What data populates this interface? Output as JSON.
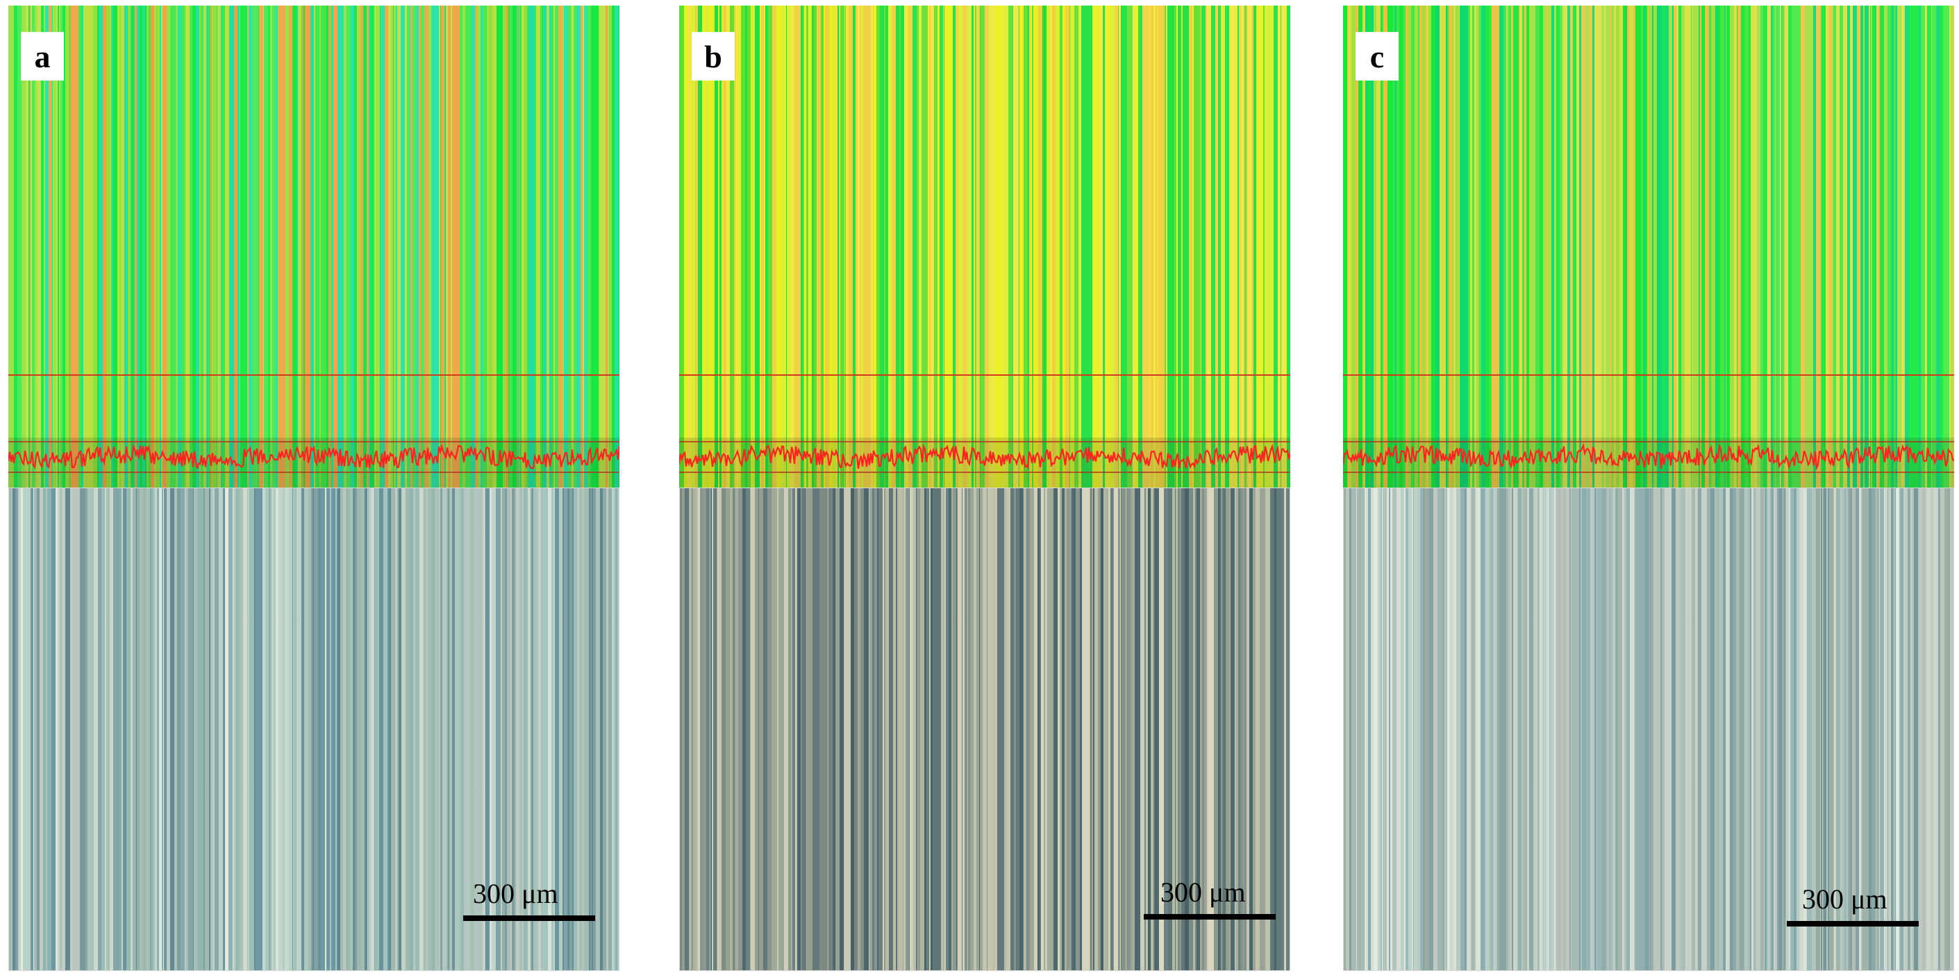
{
  "panels": [
    {
      "label": "a",
      "scale_text": "300 μm",
      "profile_color": "#ff2020",
      "heightmap_palette": [
        "#12e83c",
        "#3fe84a",
        "#8fe03a",
        "#f0a040",
        "#20e0a0",
        "#b8e040"
      ],
      "micrograph_palette": [
        "#a9cbc4",
        "#c8dcd4",
        "#8fb4b6",
        "#e2ebe0",
        "#6f9aa4",
        "#b7d2c6"
      ]
    },
    {
      "label": "b",
      "scale_text": "300 μm",
      "profile_color": "#ff2020",
      "heightmap_palette": [
        "#e8f020",
        "#d8f030",
        "#20e040",
        "#f0e840",
        "#60e030",
        "#f0d040"
      ],
      "micrograph_palette": [
        "#cfd3b8",
        "#a8b0a0",
        "#6e8484",
        "#e0dcc4",
        "#8c9a90",
        "#4f6a70"
      ]
    },
    {
      "label": "c",
      "scale_text": "300 μm",
      "profile_color": "#ff2020",
      "heightmap_palette": [
        "#18e838",
        "#40e840",
        "#f0c040",
        "#a0e040",
        "#10d870",
        "#d8e040"
      ],
      "micrograph_palette": [
        "#c0d4cc",
        "#d8e2d6",
        "#9ebcbc",
        "#b4c8be",
        "#e6ece2",
        "#8aaeb2"
      ]
    }
  ]
}
